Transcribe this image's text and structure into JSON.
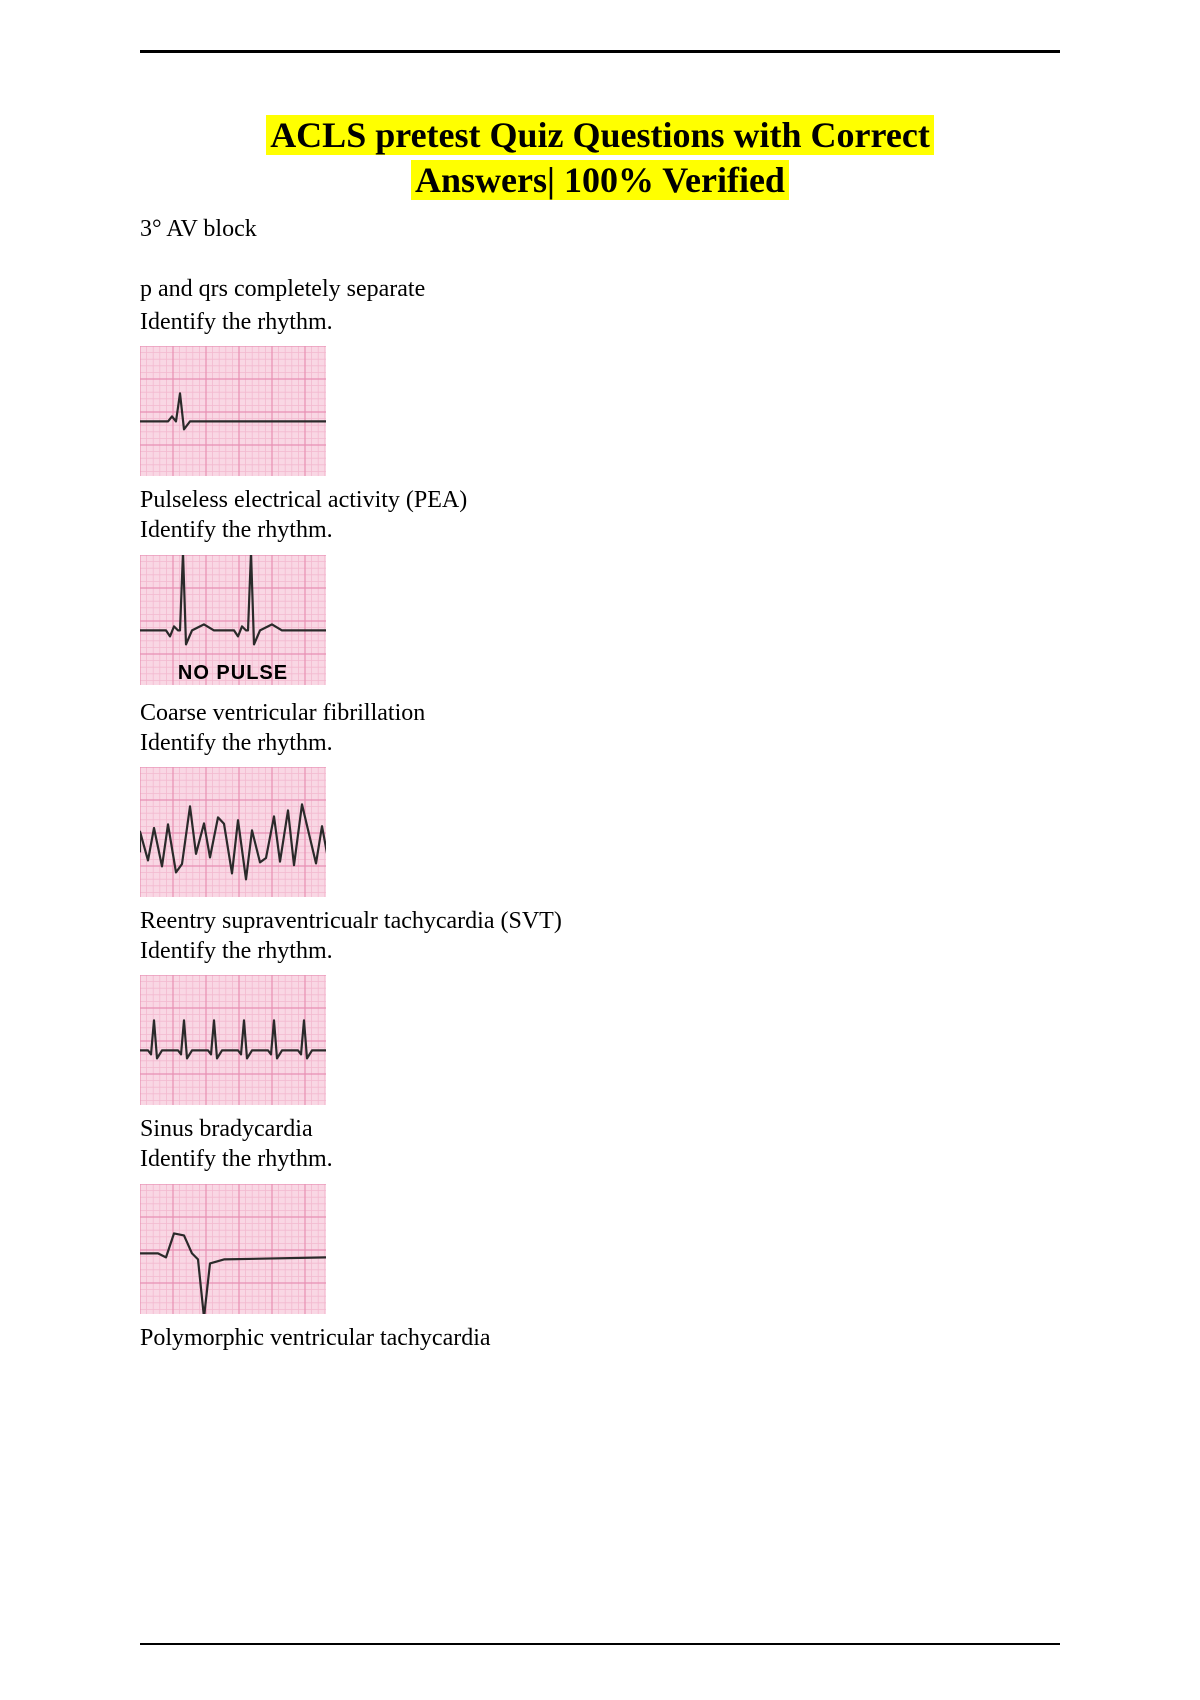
{
  "title_line1": "ACLS pretest Quiz Questions with Correct",
  "title_line2": "Answers| 100% Verified",
  "intro_line1": "3° AV block",
  "intro_line2": "p and qrs completely separate",
  "identify": "Identify the rhythm.",
  "items": [
    {
      "answer": "Pulseless electrical activity (PEA)",
      "waveform": "pea",
      "overlay": ""
    },
    {
      "answer": "Coarse ventricular fibrillation",
      "waveform": "nsr_no_pulse",
      "overlay": "NO PULSE"
    },
    {
      "answer": "Reentry supraventricualr tachycardia (SVT)",
      "waveform": "vfib",
      "overlay": ""
    },
    {
      "answer": "Sinus bradycardia",
      "waveform": "svt",
      "overlay": ""
    },
    {
      "answer": "Polymorphic ventricular tachycardia",
      "waveform": "brady",
      "overlay": ""
    }
  ],
  "ecg_style": {
    "width": 186,
    "height": 130,
    "bg": "#f9d7e4",
    "grid_minor": "#f3b9cf",
    "grid_major": "#e890b3",
    "trace": "#2a2a2a",
    "trace_width": 2.2
  }
}
